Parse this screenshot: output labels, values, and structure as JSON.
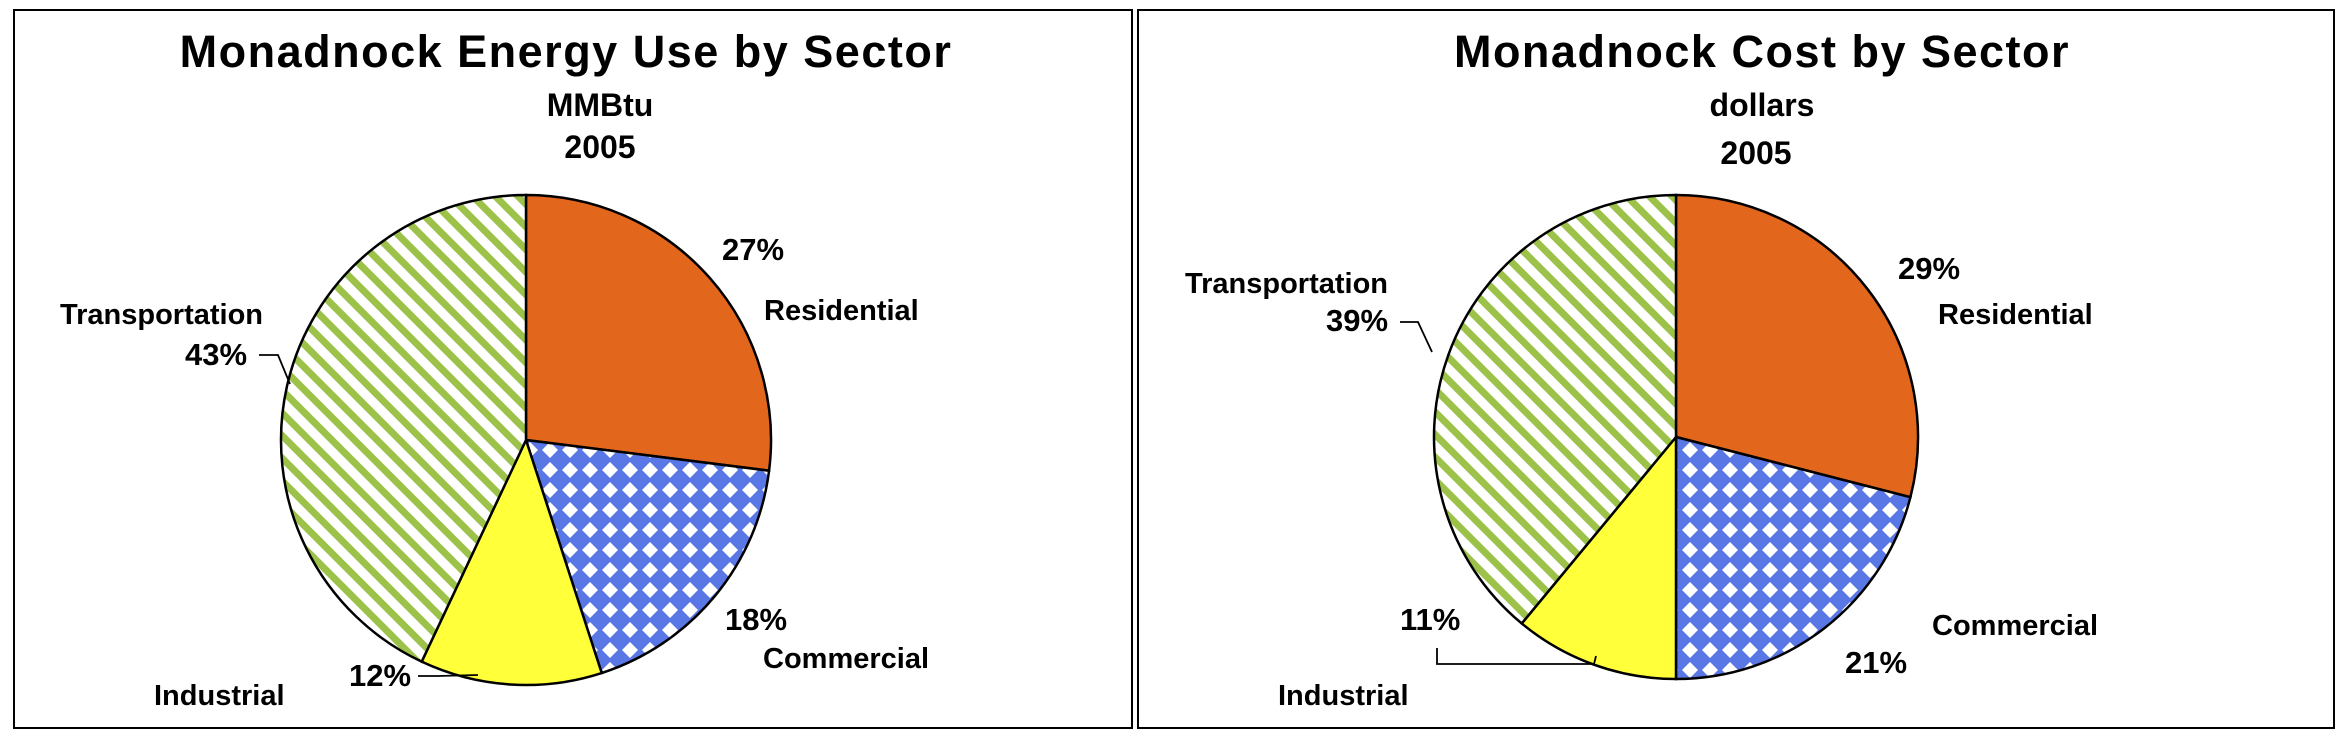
{
  "chart_data": [
    {
      "type": "pie",
      "title": "Monadnock Energy Use by Sector",
      "subtitles": [
        "MMBtu",
        "2005"
      ],
      "slices": [
        {
          "label": "Residential",
          "value": 27,
          "display": "27%",
          "color": "#E2661C",
          "pattern": "solid"
        },
        {
          "label": "Commercial",
          "value": 18,
          "display": "18%",
          "color": "#5A77E6",
          "pattern": "diamond-grid"
        },
        {
          "label": "Industrial",
          "value": 12,
          "display": "12%",
          "color": "#FFFF3A",
          "pattern": "solid"
        },
        {
          "label": "Transportation",
          "value": 43,
          "display": "43%",
          "color": "#9CC24A",
          "pattern": "diagonal-stripes"
        }
      ],
      "legend": "none"
    },
    {
      "type": "pie",
      "title": "Monadnock Cost by Sector",
      "subtitles": [
        "dollars",
        "2005"
      ],
      "slices": [
        {
          "label": "Residential",
          "value": 29,
          "display": "29%",
          "color": "#E2661C",
          "pattern": "solid"
        },
        {
          "label": "Commercial",
          "value": 21,
          "display": "21%",
          "color": "#5A77E6",
          "pattern": "diamond-grid"
        },
        {
          "label": "Industrial",
          "value": 11,
          "display": "11%",
          "color": "#FFFF3A",
          "pattern": "solid"
        },
        {
          "label": "Transportation",
          "value": 39,
          "display": "39%",
          "color": "#9CC24A",
          "pattern": "diagonal-stripes"
        }
      ],
      "legend": "none"
    }
  ]
}
